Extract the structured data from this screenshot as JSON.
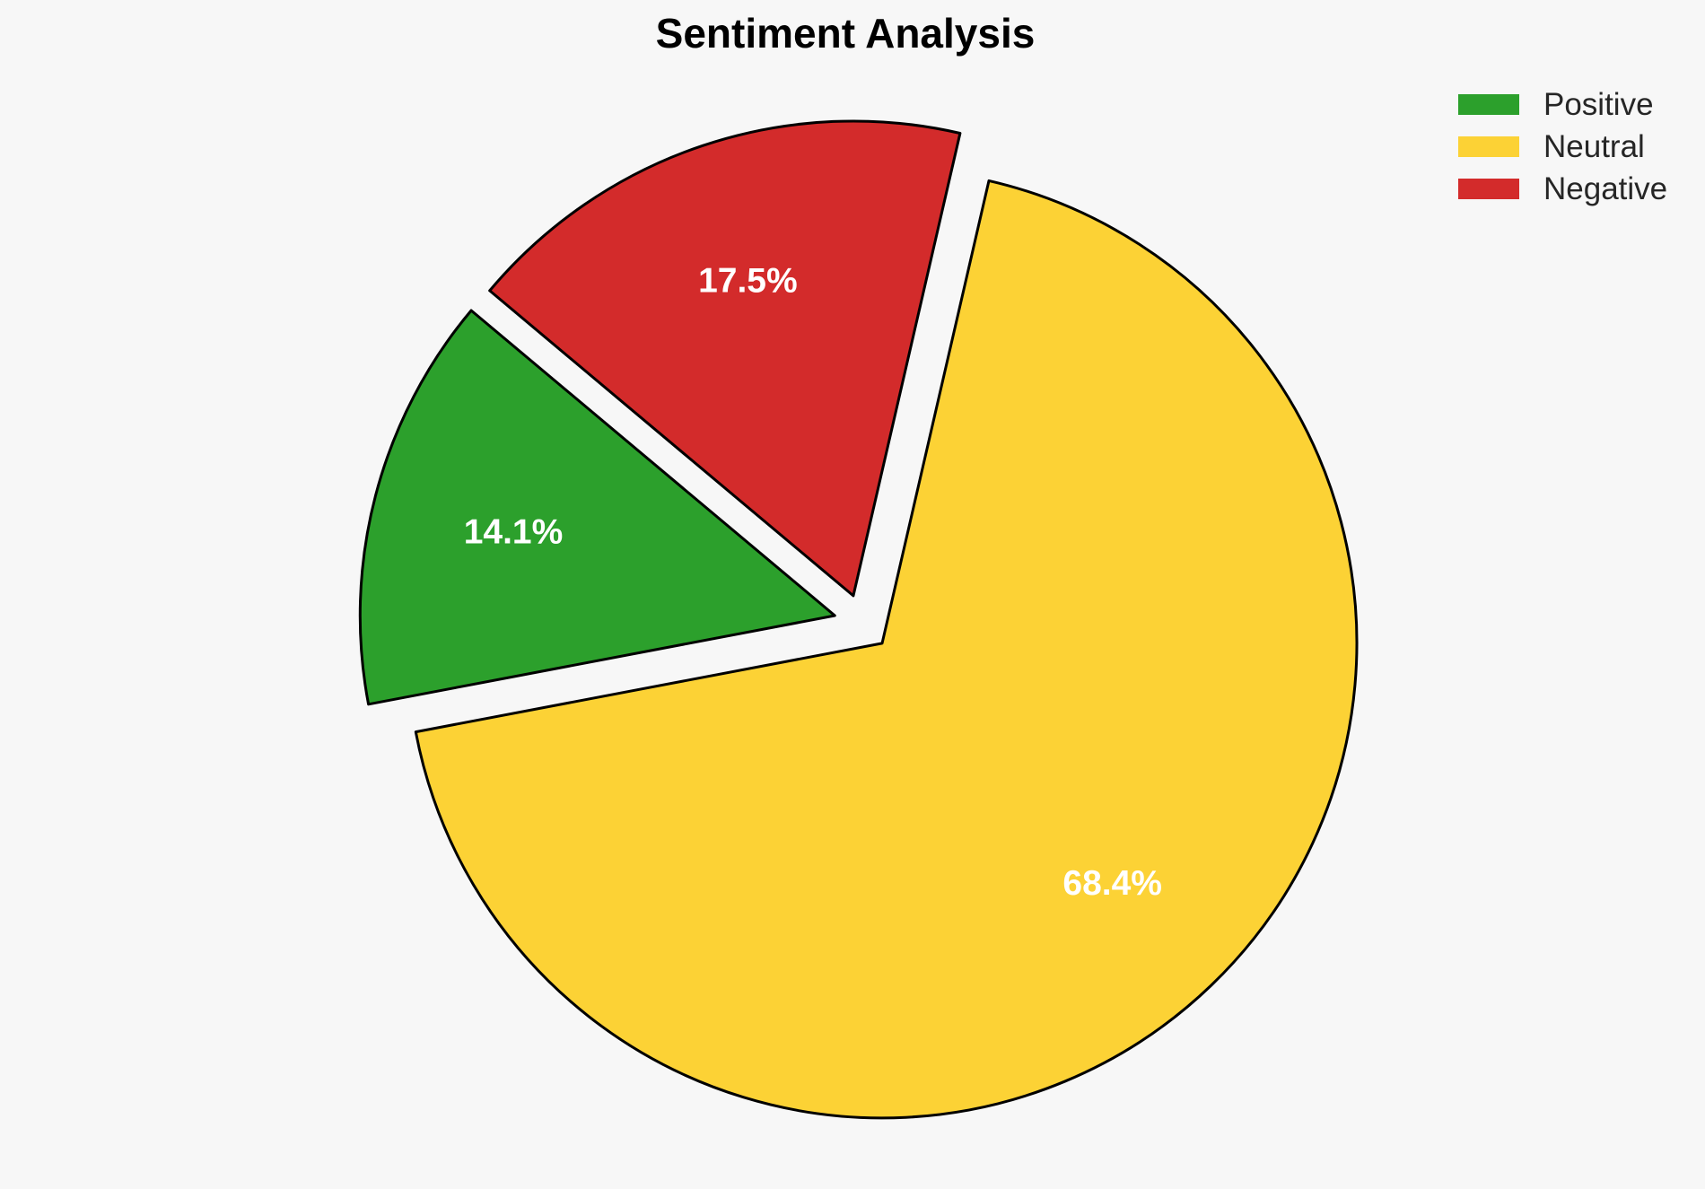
{
  "title": "Sentiment Analysis",
  "background_color": "#f7f7f7",
  "chart_data": {
    "type": "pie",
    "title": "Sentiment Analysis",
    "categories": [
      "Positive",
      "Neutral",
      "Negative"
    ],
    "values": [
      14.1,
      68.4,
      17.5
    ],
    "pct_labels": [
      "14.1%",
      "68.4%",
      "17.5%"
    ],
    "colors": [
      "#2ca02c",
      "#fcd235",
      "#d32b2b"
    ],
    "start_angle": 140,
    "counterclockwise": true,
    "explode": 0.06,
    "label_distance": 0.7,
    "edge_color": "#000000",
    "label_color": "#ffffff",
    "grid": false,
    "legend_position": "upper right"
  },
  "legend": {
    "items": [
      {
        "label": "Positive",
        "color": "#2ca02c"
      },
      {
        "label": "Neutral",
        "color": "#fcd235"
      },
      {
        "label": "Negative",
        "color": "#d32b2b"
      }
    ]
  }
}
